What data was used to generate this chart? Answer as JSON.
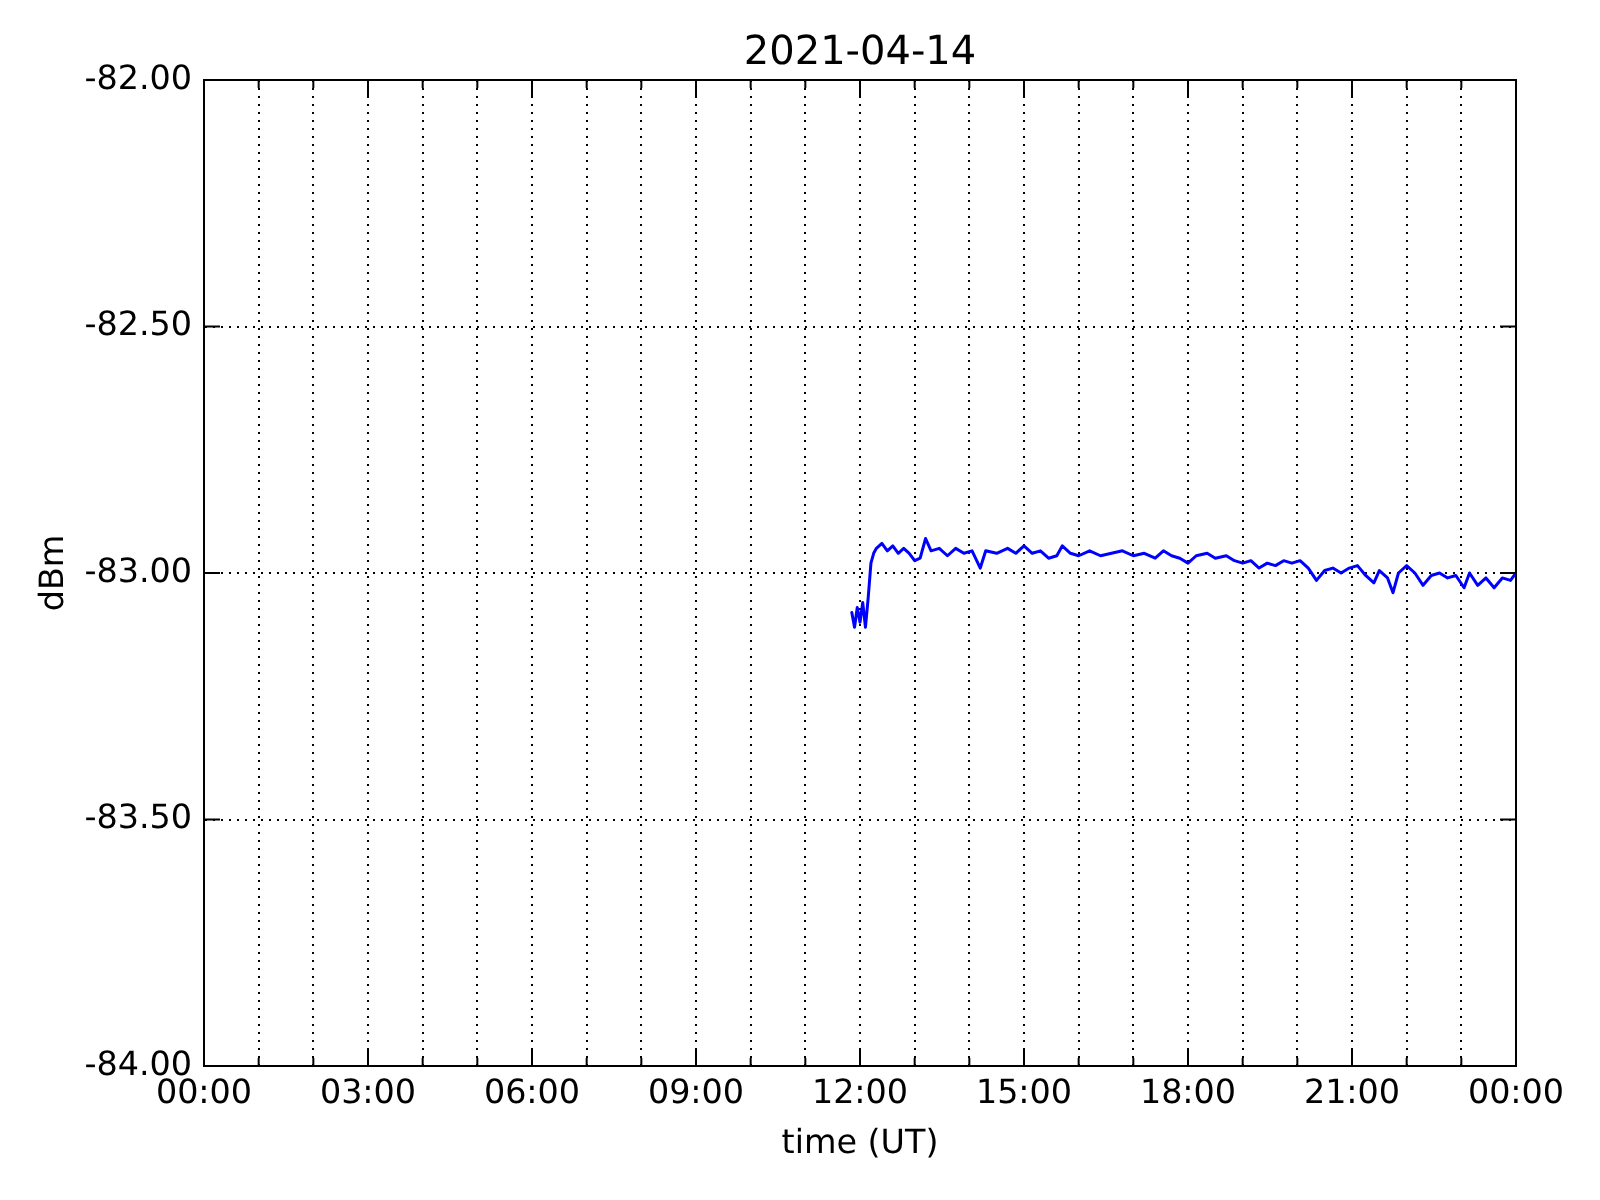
{
  "chart_data": {
    "type": "line",
    "title": "2021-04-14",
    "xlabel": "time (UT)",
    "ylabel": "dBm",
    "x": [
      11.85,
      11.9,
      11.95,
      12.0,
      12.05,
      12.1,
      12.15,
      12.2,
      12.25,
      12.3,
      12.4,
      12.5,
      12.6,
      12.7,
      12.8,
      12.9,
      13.0,
      13.1,
      13.2,
      13.3,
      13.45,
      13.6,
      13.75,
      13.9,
      14.05,
      14.2,
      14.3,
      14.5,
      14.7,
      14.85,
      15.0,
      15.15,
      15.3,
      15.45,
      15.6,
      15.7,
      15.85,
      16.0,
      16.2,
      16.4,
      16.6,
      16.8,
      17.0,
      17.2,
      17.4,
      17.55,
      17.7,
      17.85,
      18.0,
      18.15,
      18.35,
      18.5,
      18.7,
      18.85,
      19.0,
      19.15,
      19.3,
      19.45,
      19.6,
      19.75,
      19.9,
      20.05,
      20.2,
      20.35,
      20.5,
      20.65,
      20.8,
      20.95,
      21.1,
      21.25,
      21.4,
      21.5,
      21.65,
      21.75,
      21.85,
      22.0,
      22.15,
      22.3,
      22.45,
      22.6,
      22.75,
      22.9,
      23.05,
      23.15,
      23.3,
      23.45,
      23.6,
      23.75,
      23.9,
      24.0
    ],
    "series": [
      {
        "color": "#0000ff",
        "values": [
          -83.08,
          -83.11,
          -83.07,
          -83.1,
          -83.06,
          -83.11,
          -83.05,
          -82.98,
          -82.96,
          -82.95,
          -82.94,
          -82.955,
          -82.945,
          -82.96,
          -82.95,
          -82.96,
          -82.975,
          -82.97,
          -82.93,
          -82.955,
          -82.95,
          -82.965,
          -82.95,
          -82.96,
          -82.955,
          -82.99,
          -82.955,
          -82.96,
          -82.95,
          -82.96,
          -82.945,
          -82.96,
          -82.955,
          -82.97,
          -82.965,
          -82.945,
          -82.96,
          -82.965,
          -82.955,
          -82.965,
          -82.96,
          -82.955,
          -82.965,
          -82.96,
          -82.97,
          -82.955,
          -82.965,
          -82.97,
          -82.98,
          -82.965,
          -82.96,
          -82.97,
          -82.965,
          -82.975,
          -82.98,
          -82.975,
          -82.99,
          -82.98,
          -82.985,
          -82.975,
          -82.98,
          -82.975,
          -82.99,
          -83.015,
          -82.995,
          -82.99,
          -83.0,
          -82.99,
          -82.985,
          -83.005,
          -83.02,
          -82.995,
          -83.01,
          -83.04,
          -83.0,
          -82.985,
          -83.0,
          -83.025,
          -83.005,
          -83.0,
          -83.01,
          -83.005,
          -83.03,
          -83.0,
          -83.025,
          -83.01,
          -83.03,
          -83.01,
          -83.015,
          -83.0
        ]
      }
    ],
    "xlim": [
      0,
      24
    ],
    "xticks": [
      {
        "value": 0,
        "label": "00:00"
      },
      {
        "value": 1,
        "label": null
      },
      {
        "value": 2,
        "label": null
      },
      {
        "value": 3,
        "label": "03:00"
      },
      {
        "value": 4,
        "label": null
      },
      {
        "value": 5,
        "label": null
      },
      {
        "value": 6,
        "label": "06:00"
      },
      {
        "value": 7,
        "label": null
      },
      {
        "value": 8,
        "label": null
      },
      {
        "value": 9,
        "label": "09:00"
      },
      {
        "value": 10,
        "label": null
      },
      {
        "value": 11,
        "label": null
      },
      {
        "value": 12,
        "label": "12:00"
      },
      {
        "value": 13,
        "label": null
      },
      {
        "value": 14,
        "label": null
      },
      {
        "value": 15,
        "label": "15:00"
      },
      {
        "value": 16,
        "label": null
      },
      {
        "value": 17,
        "label": null
      },
      {
        "value": 18,
        "label": "18:00"
      },
      {
        "value": 19,
        "label": null
      },
      {
        "value": 20,
        "label": null
      },
      {
        "value": 21,
        "label": "21:00"
      },
      {
        "value": 22,
        "label": null
      },
      {
        "value": 23,
        "label": null
      },
      {
        "value": 24,
        "label": "00:00"
      }
    ],
    "ylim": [
      -84,
      -82
    ],
    "yticks": [
      {
        "value": -84,
        "label": "-84.00"
      },
      {
        "value": -83.5,
        "label": "-83.50"
      },
      {
        "value": -83,
        "label": "-83.00"
      },
      {
        "value": -82.5,
        "label": "-82.50"
      },
      {
        "value": -82,
        "label": "-82.00"
      }
    ],
    "grid": true,
    "marker": "none",
    "line_style": "solid"
  }
}
